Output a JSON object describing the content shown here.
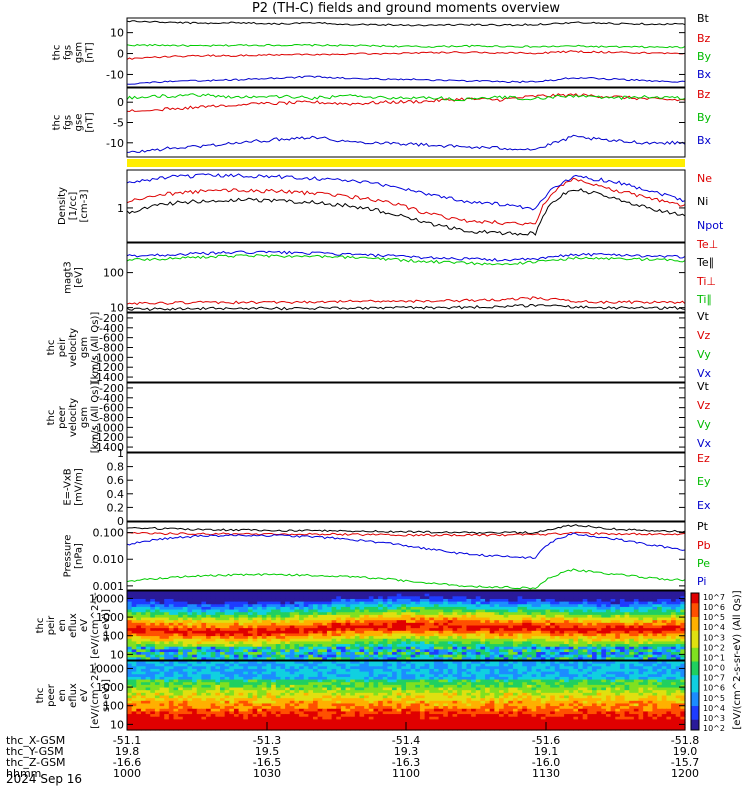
{
  "title": "P2 (TH-C) fields and ground moments overview",
  "date_label": "2024 Sep 16",
  "chart_data": [
    {
      "type": "line",
      "panel": "fgs_gsm",
      "ylabel": [
        "thc",
        "fgs",
        "gsm",
        "[nT]"
      ],
      "yticks": [
        10,
        0,
        -10
      ],
      "ylim": [
        -16,
        17
      ],
      "series": [
        {
          "name": "Bt",
          "color": "#000000",
          "values": [
            15.5,
            15,
            14.5,
            14.8,
            14.2,
            14.6,
            14,
            13.8,
            13.5,
            13.8,
            13.6,
            13.9,
            14.8,
            14.4,
            14.2,
            14
          ]
        },
        {
          "name": "Bz",
          "color": "#dd0000",
          "values": [
            -2.5,
            -1.5,
            -1,
            -1,
            -0.5,
            -0.5,
            -0.2,
            0,
            0.5,
            0.6,
            0.4,
            0.2,
            1,
            0.6,
            0.3,
            0
          ]
        },
        {
          "name": "By",
          "color": "#00cc00",
          "values": [
            4,
            4,
            3.6,
            4,
            4,
            4,
            3.8,
            3.6,
            3.2,
            3.6,
            3.5,
            3.2,
            3.6,
            3.2,
            3.1,
            3
          ]
        },
        {
          "name": "Bx",
          "color": "#0000cc",
          "values": [
            -14.5,
            -13.5,
            -13,
            -12.5,
            -11.8,
            -11,
            -12,
            -12.2,
            -12.5,
            -13,
            -13.5,
            -13.6,
            -11.5,
            -12.2,
            -13,
            -13.5
          ]
        }
      ]
    },
    {
      "type": "line",
      "panel": "fgs_gse",
      "ylabel": [
        "thc",
        "fgs",
        "gse",
        "[nT]"
      ],
      "yticks": [
        0,
        -5,
        -10
      ],
      "ylim": [
        -13.5,
        3.5
      ],
      "series": [
        {
          "name": "Bz",
          "color": "#dd0000",
          "values": [
            -2.2,
            -1.8,
            -1,
            -0.6,
            -0.3,
            0,
            -0.4,
            0,
            0.2,
            0.8,
            0.6,
            1.5,
            1.8,
            1.4,
            0.8,
            0.5
          ]
        },
        {
          "name": "By",
          "color": "#00cc00",
          "values": [
            1,
            1.5,
            1.8,
            1.2,
            1.5,
            1,
            1.6,
            1,
            1.2,
            0.6,
            1.2,
            0.9,
            1.6,
            1,
            1.3,
            1
          ]
        },
        {
          "name": "Bx",
          "color": "#0000cc",
          "values": [
            -12.5,
            -11.5,
            -10.8,
            -10,
            -9.2,
            -8.5,
            -9.8,
            -10,
            -10.5,
            -11,
            -11.3,
            -11.6,
            -8.5,
            -9.5,
            -10,
            -10
          ]
        }
      ]
    },
    {
      "type": "line",
      "panel": "density",
      "scale": "log",
      "ylabel": [
        "Density",
        "[1/cc]",
        "[cm-3]"
      ],
      "yticks": [
        1
      ],
      "ylim": [
        0.2,
        6
      ],
      "series": [
        {
          "name": "Ne",
          "color": "#dd0000",
          "values": [
            1.3,
            1.9,
            2.2,
            2.3,
            2.2,
            2,
            1.7,
            1.3,
            0.8,
            0.55,
            0.5,
            0.45,
            4,
            2.4,
            1.6,
            1.1
          ]
        },
        {
          "name": "Ni",
          "color": "#000000",
          "values": [
            0.8,
            1.2,
            1.4,
            1.5,
            1.4,
            1.3,
            1.1,
            0.8,
            0.5,
            0.35,
            0.3,
            0.3,
            2.5,
            1.6,
            1,
            0.7
          ]
        },
        {
          "name": "Npot",
          "color": "#0000dd",
          "values": [
            3.2,
            4.2,
            4.6,
            4.6,
            4.4,
            4.1,
            3.6,
            2.9,
            2,
            1.4,
            1.2,
            0.9,
            4.4,
            3.6,
            2.3,
            1.4
          ]
        }
      ]
    },
    {
      "type": "line",
      "panel": "temperature",
      "scale": "log",
      "ylabel": [
        "magt3",
        "[eV]"
      ],
      "yticks": [
        100,
        10
      ],
      "ylim": [
        7.5,
        700
      ],
      "series": [
        {
          "name": "Te⊥",
          "color": "#dd0000",
          "values": [
            13,
            13.5,
            14,
            14,
            14.2,
            14.5,
            15,
            15.5,
            15.5,
            16,
            17,
            19,
            15,
            14.5,
            14.2,
            14
          ]
        },
        {
          "name": "Te∥",
          "color": "#000000",
          "values": [
            9,
            9.2,
            9.4,
            9.5,
            9.5,
            9.6,
            9.8,
            10,
            10,
            10.2,
            10.8,
            11.5,
            10.4,
            10,
            9.8,
            9.8
          ]
        },
        {
          "name": "Ti⊥",
          "color": "#0000dd",
          "values": [
            300,
            320,
            350,
            380,
            380,
            360,
            330,
            300,
            270,
            250,
            230,
            240,
            330,
            330,
            300,
            280
          ]
        },
        {
          "name": "Ti∥",
          "color": "#00cc00",
          "values": [
            230,
            250,
            280,
            300,
            300,
            290,
            270,
            240,
            210,
            190,
            175,
            200,
            260,
            250,
            240,
            220
          ]
        }
      ]
    },
    {
      "type": "line",
      "panel": "velocity_ion",
      "ylabel": [
        "thc",
        "peir",
        "velocity",
        "gsm",
        "[km/s (All Qs)]"
      ],
      "yticks": [
        -200,
        -400,
        -600,
        -800,
        -1000,
        -1200,
        -1400
      ],
      "ylim": [
        -1500,
        -100
      ],
      "legend": [
        "Vt",
        "Vz",
        "Vy",
        "Vx"
      ],
      "series": []
    },
    {
      "type": "line",
      "panel": "velocity_electron",
      "ylabel": [
        "thc",
        "peer",
        "velocity",
        "gsm",
        "[km/s (All Qs)]"
      ],
      "yticks": [
        -200,
        -400,
        -600,
        -800,
        -1000,
        -1200,
        -1400
      ],
      "ylim": [
        -1500,
        -100
      ],
      "legend": [
        "Vt",
        "Vz",
        "Vy",
        "Vx"
      ],
      "series": []
    },
    {
      "type": "line",
      "panel": "efield",
      "ylabel": [
        "E=-VxB",
        "[mV/m]"
      ],
      "yticks": [
        1.0,
        0.8,
        0.6,
        0.4,
        0.2,
        0.0
      ],
      "ylim": [
        0,
        1
      ],
      "legend": [
        "Ez",
        "Ey",
        "Ex"
      ],
      "series": []
    },
    {
      "type": "line",
      "panel": "pressure",
      "scale": "log",
      "ylabel": [
        "Pressure",
        "[nPa]"
      ],
      "ytick_labels": [
        "0.100",
        "0.010",
        "0.001"
      ],
      "yticks": [
        0.1,
        0.01,
        0.001
      ],
      "ylim": [
        0.0007,
        0.25
      ],
      "series": [
        {
          "name": "Pt",
          "color": "#000000",
          "values": [
            0.16,
            0.14,
            0.13,
            0.125,
            0.12,
            0.12,
            0.115,
            0.11,
            0.105,
            0.1,
            0.1,
            0.1,
            0.19,
            0.14,
            0.12,
            0.11
          ]
        },
        {
          "name": "Pb",
          "color": "#dd0000",
          "values": [
            0.095,
            0.092,
            0.09,
            0.09,
            0.088,
            0.088,
            0.085,
            0.083,
            0.08,
            0.082,
            0.082,
            0.083,
            0.095,
            0.09,
            0.088,
            0.087
          ]
        },
        {
          "name": "Pe",
          "color": "#00cc00",
          "values": [
            0.0015,
            0.002,
            0.0024,
            0.0026,
            0.0026,
            0.0025,
            0.0022,
            0.0018,
            0.0013,
            0.001,
            0.0009,
            0.0008,
            0.004,
            0.0028,
            0.002,
            0.0016
          ]
        },
        {
          "name": "Pi",
          "color": "#0000dd",
          "values": [
            0.035,
            0.06,
            0.075,
            0.08,
            0.078,
            0.07,
            0.055,
            0.04,
            0.025,
            0.016,
            0.013,
            0.011,
            0.09,
            0.06,
            0.035,
            0.022
          ]
        }
      ]
    },
    {
      "type": "heatmap",
      "panel": "ion_spectrogram",
      "scale": "log",
      "ylabel": [
        "thc",
        "peir",
        "en",
        "eflux",
        "eV",
        "[eV/(cm^2-s-",
        "sr-eV)]"
      ],
      "yticks": [
        10000,
        1000,
        100,
        10
      ],
      "ylim": [
        5,
        25000
      ]
    },
    {
      "type": "heatmap",
      "panel": "electron_spectrogram",
      "scale": "log",
      "ylabel": [
        "thc",
        "peer",
        "en",
        "eflux",
        "eV",
        "[eV/(cm^2-s-",
        "sr-eV)]"
      ],
      "yticks": [
        10000,
        1000,
        100,
        10
      ],
      "ylim": [
        5,
        25000
      ]
    }
  ],
  "colorbar": {
    "label": "[eV/(cm^2-s-sr-eV) (All Qs)]",
    "ticks": [
      "10^7",
      "10^6",
      "10^5",
      "10^4",
      "10^3",
      "10^2",
      "10^1",
      "10^0",
      "10^7",
      "10^6",
      "10^5",
      "10^4",
      "10^3",
      "10^2"
    ]
  },
  "right_labels": [
    [
      "Bt",
      "Bz",
      "By",
      "Bx"
    ],
    [
      "Bz",
      "By",
      "Bx"
    ],
    [
      "Ne",
      "Ni",
      "Npot",
      "Te⊥"
    ],
    [
      "Te∥",
      "Ti⊥",
      "Ti∥"
    ],
    [
      "Vt",
      "Vz",
      "Vy",
      "Vx"
    ],
    [
      "Vt",
      "Vz",
      "Vy",
      "Vx"
    ],
    [
      "Ez",
      "Ey",
      "Ex"
    ],
    [
      "Pt",
      "Pb",
      "Pe",
      "Pi"
    ]
  ],
  "x_axis": {
    "rows": [
      {
        "label": "thc_X-GSM",
        "values": [
          "-51.1",
          "-51.3",
          "-51.4",
          "-51.6",
          "-51.8"
        ]
      },
      {
        "label": "thc_Y-GSM",
        "values": [
          "19.8",
          "19.5",
          "19.3",
          "19.1",
          "19.0"
        ]
      },
      {
        "label": "thc_Z-GSM",
        "values": [
          "-16.6",
          "-16.5",
          "-16.3",
          "-16.0",
          "-15.7"
        ]
      },
      {
        "label": "hhmm",
        "values": [
          "1000",
          "1030",
          "1100",
          "1130",
          "1200"
        ]
      }
    ]
  }
}
